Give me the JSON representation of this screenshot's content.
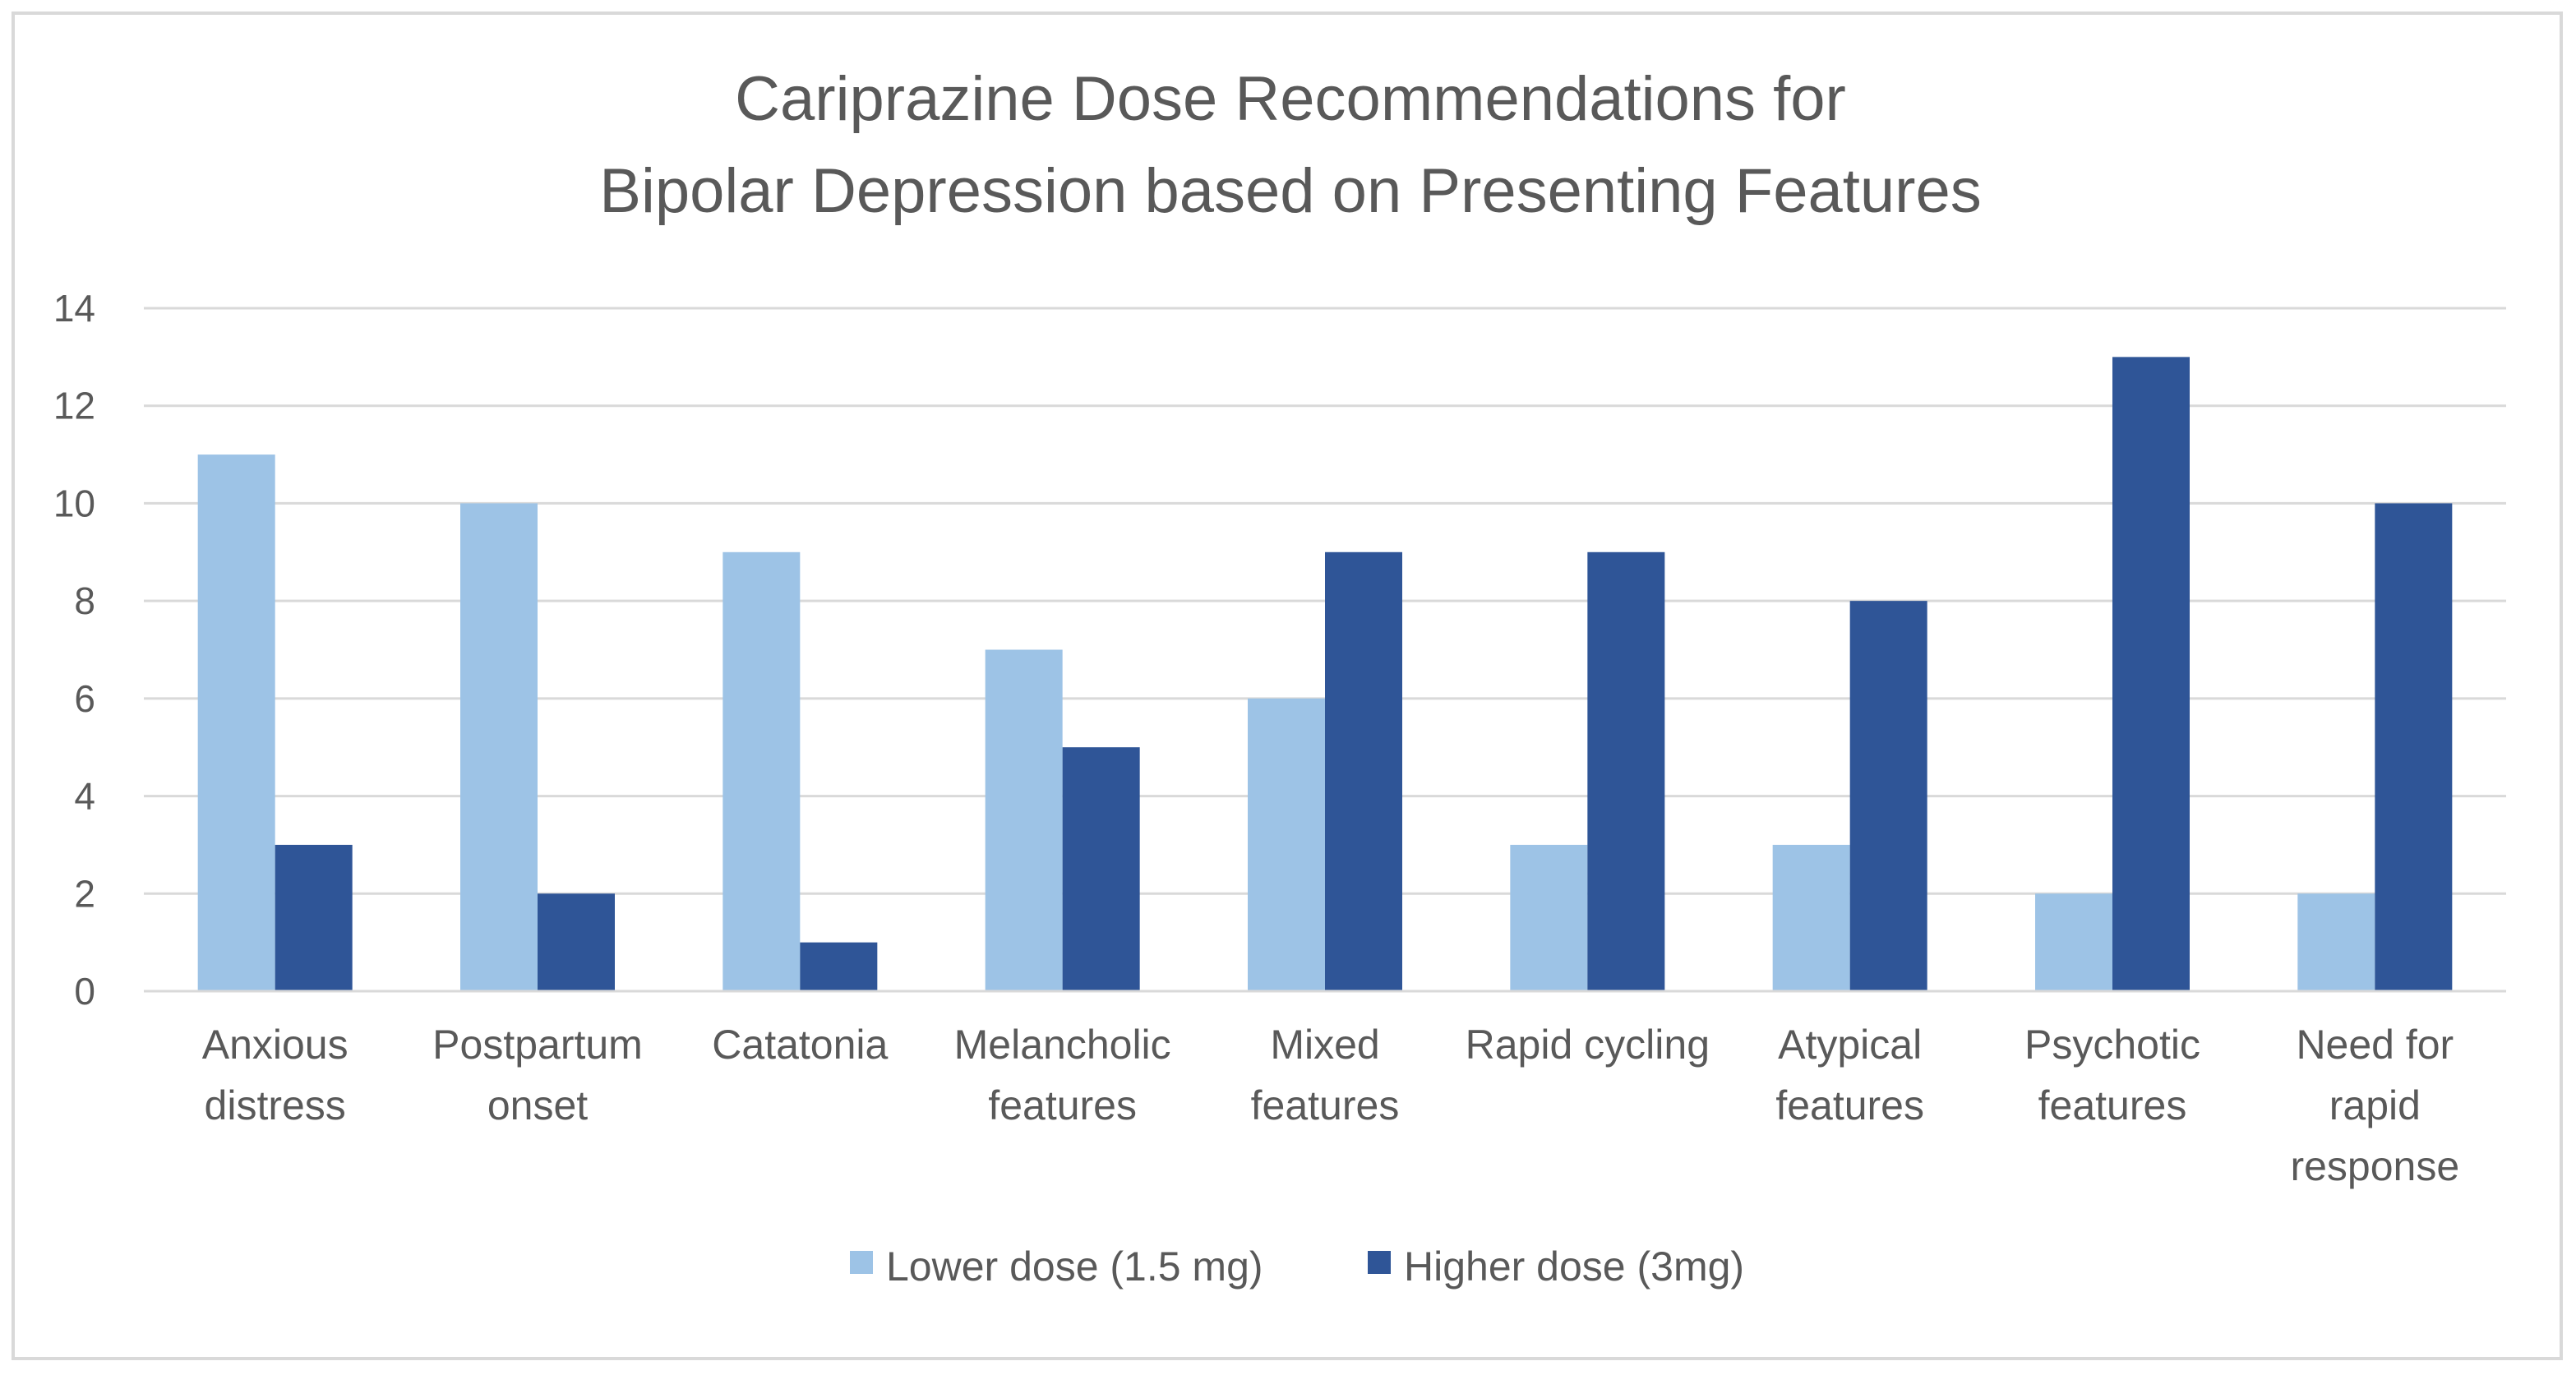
{
  "chart_data": {
    "type": "bar",
    "title": "Cariprazine Dose Recommendations for Bipolar Depression based on Presenting Features",
    "title_lines": [
      "Cariprazine Dose Recommendations for",
      "Bipolar Depression based on Presenting Features"
    ],
    "categories": [
      [
        "Anxious",
        "distress"
      ],
      [
        "Postpartum",
        "onset"
      ],
      [
        "Catatonia"
      ],
      [
        "Melancholic",
        "features"
      ],
      [
        "Mixed",
        "features"
      ],
      [
        "Rapid cycling"
      ],
      [
        "Atypical",
        "features"
      ],
      [
        "Psychotic",
        "features"
      ],
      [
        "Need for",
        "rapid",
        "response"
      ]
    ],
    "series": [
      {
        "name": "Lower dose (1.5 mg)",
        "color": "#9dc3e6",
        "values": [
          11,
          10,
          9,
          7,
          6,
          3,
          3,
          2,
          2
        ]
      },
      {
        "name": "Higher dose (3mg)",
        "color": "#2f5597",
        "values": [
          3,
          2,
          1,
          5,
          9,
          9,
          8,
          13,
          10
        ]
      }
    ],
    "xlabel": "",
    "ylabel": "",
    "ylim": [
      0,
      14
    ],
    "yticks": [
      "0",
      "2",
      "4",
      "6",
      "8",
      "10",
      "12",
      "14"
    ],
    "grid": true,
    "legend": "bottom",
    "gridline_color": "#d9d9d9",
    "frame_color": "#d9d9d9",
    "text_color": "#595959"
  }
}
